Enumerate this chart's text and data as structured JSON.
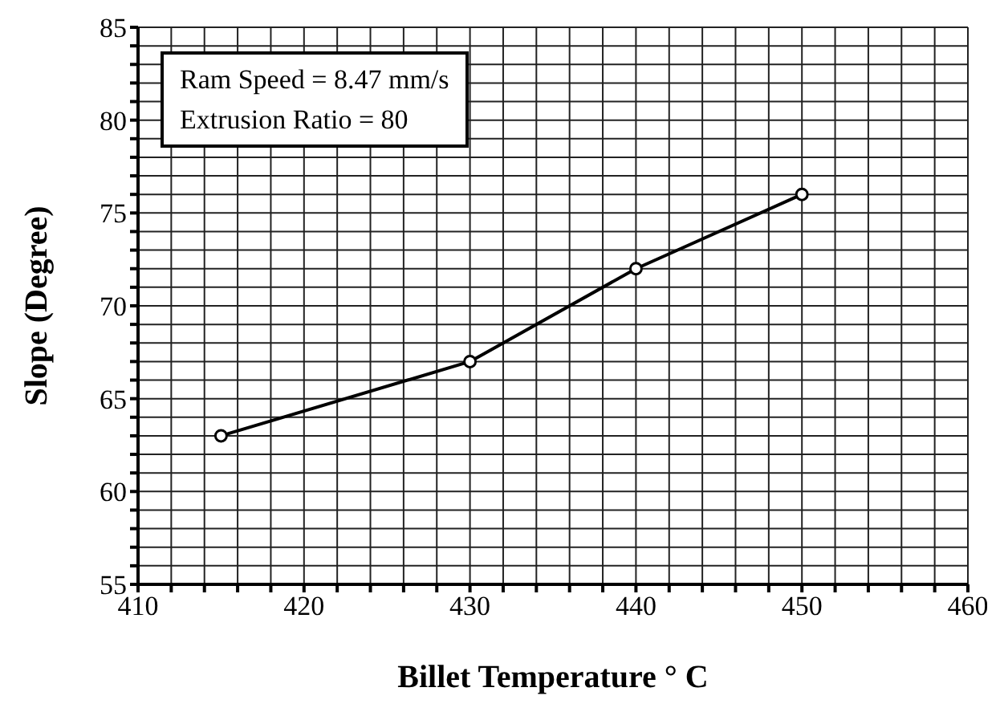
{
  "chart_data": {
    "type": "line",
    "xlabel": "Billet Temperature ° C",
    "ylabel": "Slope (Degree)",
    "annotations": [
      "Ram Speed = 8.47 mm/s",
      "Extrusion Ratio = 80"
    ],
    "x": [
      415,
      430,
      440,
      450
    ],
    "series": [
      {
        "color": "#000000",
        "values": [
          63,
          67,
          72,
          76
        ]
      }
    ],
    "marker": "circle",
    "line_style": "solid",
    "grid": true,
    "xlim": [
      410,
      460
    ],
    "xticks": [
      410,
      {
        "value": 412,
        "label": null
      },
      {
        "value": 414,
        "label": null
      },
      {
        "value": 416,
        "label": null
      },
      {
        "value": 418,
        "label": null
      },
      420,
      {
        "value": 422,
        "label": null
      },
      {
        "value": 424,
        "label": null
      },
      {
        "value": 426,
        "label": null
      },
      {
        "value": 428,
        "label": null
      },
      430,
      {
        "value": 432,
        "label": null
      },
      {
        "value": 434,
        "label": null
      },
      {
        "value": 436,
        "label": null
      },
      {
        "value": 438,
        "label": null
      },
      440,
      {
        "value": 442,
        "label": null
      },
      {
        "value": 444,
        "label": null
      },
      {
        "value": 446,
        "label": null
      },
      {
        "value": 448,
        "label": null
      },
      450,
      {
        "value": 452,
        "label": null
      },
      {
        "value": 454,
        "label": null
      },
      {
        "value": 456,
        "label": null
      },
      {
        "value": 458,
        "label": null
      },
      460
    ],
    "ylim": [
      55,
      85
    ],
    "yticks": [
      55,
      {
        "value": 56,
        "label": null
      },
      {
        "value": 57,
        "label": null
      },
      {
        "value": 58,
        "label": null
      },
      {
        "value": 59,
        "label": null
      },
      60,
      {
        "value": 61,
        "label": null
      },
      {
        "value": 62,
        "label": null
      },
      {
        "value": 63,
        "label": null
      },
      {
        "value": 64,
        "label": null
      },
      65,
      {
        "value": 66,
        "label": null
      },
      {
        "value": 67,
        "label": null
      },
      {
        "value": 68,
        "label": null
      },
      {
        "value": 69,
        "label": null
      },
      70,
      {
        "value": 71,
        "label": null
      },
      {
        "value": 72,
        "label": null
      },
      {
        "value": 73,
        "label": null
      },
      {
        "value": 74,
        "label": null
      },
      75,
      {
        "value": 76,
        "label": null
      },
      {
        "value": 77,
        "label": null
      },
      {
        "value": 78,
        "label": null
      },
      {
        "value": 79,
        "label": null
      },
      80,
      {
        "value": 81,
        "label": null
      },
      {
        "value": 82,
        "label": null
      },
      {
        "value": 83,
        "label": null
      },
      {
        "value": 84,
        "label": null
      },
      85
    ]
  }
}
